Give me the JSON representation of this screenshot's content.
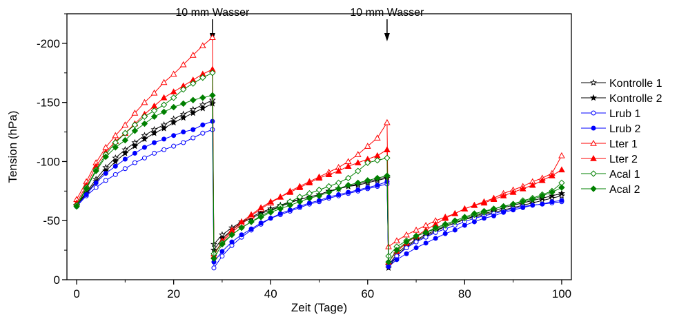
{
  "chart_data": {
    "type": "line",
    "title": "",
    "xlabel": "Zeit (Tage)",
    "ylabel": "Tension (hPa)",
    "xlim": [
      -2,
      102
    ],
    "ylim": [
      0,
      -225
    ],
    "y_axis_inverted": true,
    "x_ticks": [
      0,
      20,
      40,
      60,
      80,
      100
    ],
    "x_tick_labels": [
      "0",
      "20",
      "40",
      "60",
      "80",
      "100"
    ],
    "y_ticks": [
      0,
      -50,
      -100,
      -150,
      -200
    ],
    "y_tick_labels": [
      "0",
      "-50",
      "-100",
      "-150",
      "-200"
    ],
    "grid": false,
    "legend_position": "right",
    "annotations": [
      {
        "text": "10 mm Wasser",
        "x": 28,
        "arrow": true
      },
      {
        "text": "10 mm Wasser",
        "x": 64,
        "arrow": true
      }
    ],
    "x": [
      0,
      2,
      4,
      6,
      8,
      10,
      12,
      14,
      16,
      18,
      20,
      22,
      24,
      26,
      28,
      28.3,
      30,
      32,
      34,
      36,
      38,
      40,
      42,
      44,
      46,
      48,
      50,
      52,
      54,
      56,
      58,
      60,
      62,
      64,
      64.3,
      66,
      68,
      70,
      72,
      74,
      76,
      78,
      80,
      82,
      84,
      86,
      88,
      90,
      92,
      94,
      96,
      98,
      100
    ],
    "series": [
      {
        "name": "Kontrolle 1",
        "color": "#000000",
        "marker": "star-open",
        "values": [
          63,
          74,
          85,
          95,
          103,
          110,
          116,
          122,
          127,
          131,
          136,
          140,
          144,
          148,
          152,
          30,
          38,
          44,
          49,
          53,
          57,
          60,
          63,
          66,
          68,
          70,
          72,
          75,
          77,
          79,
          80,
          82,
          84,
          86,
          12,
          22,
          29,
          34,
          38,
          42,
          45,
          48,
          51,
          53,
          55,
          57,
          59,
          61,
          63,
          65,
          67,
          69,
          71
        ]
      },
      {
        "name": "Kontrolle 2",
        "color": "#000000",
        "marker": "star-filled",
        "values": [
          63,
          73,
          83,
          92,
          100,
          107,
          113,
          119,
          124,
          128,
          133,
          137,
          141,
          145,
          149,
          25,
          35,
          42,
          48,
          52,
          56,
          59,
          62,
          65,
          68,
          70,
          72,
          75,
          77,
          79,
          81,
          83,
          85,
          87,
          10,
          20,
          28,
          33,
          37,
          41,
          45,
          48,
          51,
          54,
          56,
          58,
          61,
          63,
          65,
          67,
          69,
          71,
          73
        ]
      },
      {
        "name": "Lrub 1",
        "color": "#0000ff",
        "marker": "circle-open",
        "values": [
          62,
          71,
          78,
          84,
          89,
          94,
          99,
          103,
          107,
          110,
          113,
          116,
          120,
          124,
          127,
          10,
          20,
          29,
          36,
          42,
          47,
          52,
          55,
          58,
          61,
          64,
          66,
          69,
          71,
          73,
          75,
          77,
          79,
          81,
          12,
          20,
          27,
          32,
          36,
          40,
          43,
          46,
          49,
          52,
          54,
          56,
          58,
          60,
          62,
          63,
          64,
          65,
          66
        ]
      },
      {
        "name": "Lrub 2",
        "color": "#0000ff",
        "marker": "circle-filled",
        "values": [
          62,
          72,
          82,
          90,
          96,
          102,
          107,
          112,
          116,
          119,
          122,
          125,
          127,
          131,
          134,
          15,
          24,
          32,
          38,
          43,
          48,
          52,
          56,
          59,
          62,
          65,
          67,
          70,
          72,
          74,
          76,
          78,
          80,
          83,
          11,
          17,
          22,
          27,
          31,
          35,
          39,
          42,
          46,
          49,
          52,
          54,
          57,
          59,
          61,
          63,
          64,
          66,
          67
        ]
      },
      {
        "name": "Lter 1",
        "color": "#ff0000",
        "marker": "triangle-open",
        "values": [
          68,
          83,
          99,
          112,
          122,
          131,
          141,
          150,
          158,
          167,
          174,
          182,
          190,
          198,
          205,
          22,
          32,
          40,
          47,
          54,
          60,
          65,
          70,
          75,
          79,
          83,
          87,
          91,
          95,
          100,
          106,
          113,
          120,
          133,
          28,
          33,
          38,
          42,
          46,
          50,
          53,
          56,
          60,
          63,
          66,
          69,
          73,
          76,
          79,
          83,
          86,
          90,
          105
        ]
      },
      {
        "name": "Lter 2",
        "color": "#ff0000",
        "marker": "triangle-filled",
        "values": [
          65,
          80,
          96,
          108,
          117,
          124,
          132,
          140,
          147,
          154,
          159,
          164,
          169,
          174,
          178,
          20,
          33,
          42,
          49,
          55,
          61,
          66,
          70,
          74,
          78,
          82,
          86,
          89,
          92,
          96,
          99,
          102,
          105,
          110,
          15,
          24,
          31,
          37,
          42,
          47,
          52,
          56,
          60,
          63,
          65,
          68,
          71,
          74,
          77,
          80,
          84,
          88,
          93
        ]
      },
      {
        "name": "Acal 1",
        "color": "#008000",
        "marker": "diamond-open",
        "values": [
          63,
          78,
          93,
          106,
          116,
          124,
          131,
          138,
          143,
          148,
          154,
          161,
          166,
          171,
          175,
          22,
          31,
          38,
          44,
          49,
          54,
          58,
          62,
          66,
          70,
          73,
          76,
          79,
          82,
          86,
          92,
          99,
          101,
          103,
          20,
          28,
          33,
          37,
          40,
          43,
          46,
          49,
          52,
          55,
          57,
          60,
          62,
          64,
          67,
          69,
          72,
          75,
          82
        ]
      },
      {
        "name": "Acal 2",
        "color": "#008000",
        "marker": "diamond-filled",
        "values": [
          62,
          77,
          92,
          104,
          112,
          118,
          126,
          132,
          138,
          142,
          146,
          149,
          152,
          154,
          156,
          18,
          30,
          38,
          44,
          49,
          53,
          57,
          60,
          63,
          66,
          69,
          71,
          74,
          77,
          80,
          82,
          84,
          86,
          88,
          15,
          25,
          32,
          37,
          40,
          44,
          47,
          50,
          53,
          56,
          58,
          60,
          62,
          64,
          66,
          68,
          71,
          74,
          78
        ]
      }
    ]
  }
}
